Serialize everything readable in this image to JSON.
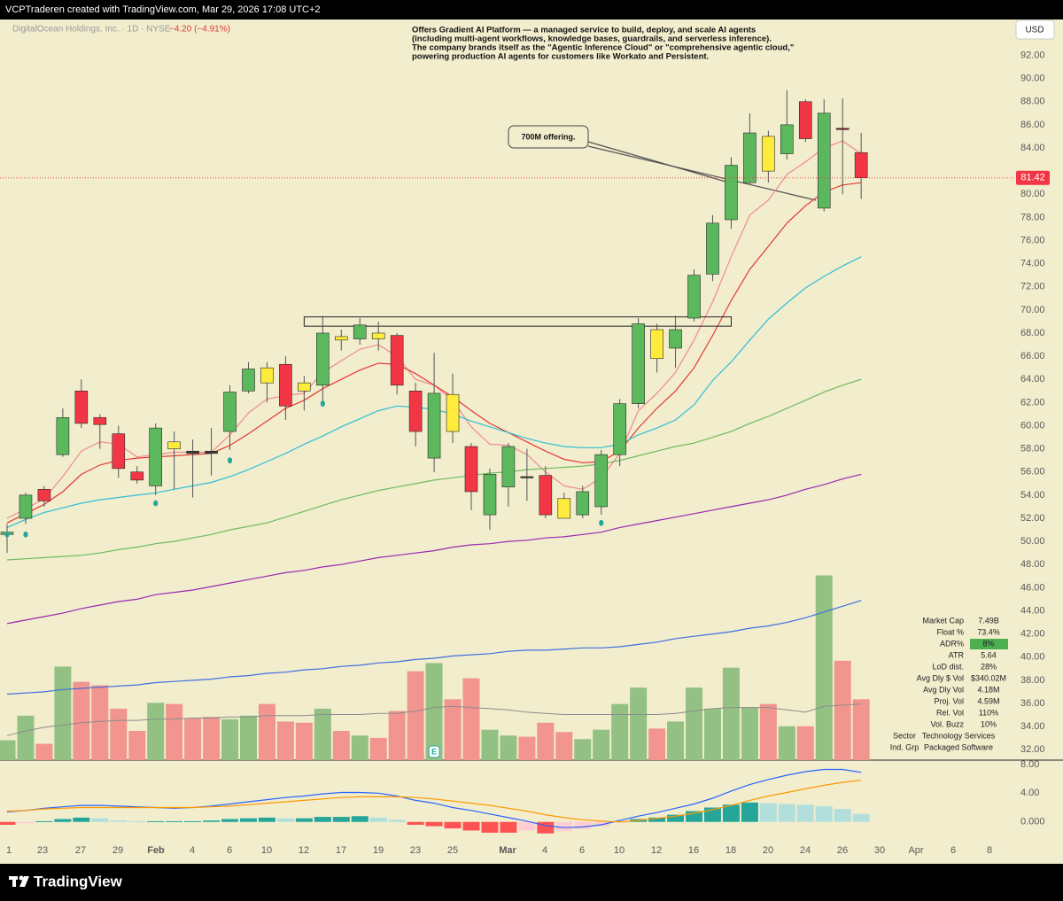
{
  "header": {
    "credit": "VCPTraderen created with TradingView.com, Mar 29, 2026 17:08 UTC+2",
    "brand": "TradingView"
  },
  "chart_data": {
    "type": "candlestick",
    "title": "DigitalOcean Holdings, Inc. · 1D · NYSE",
    "change": "−4.20 (−4.91%)",
    "currency": "USD",
    "description": [
      "Offers Gradient AI Platform — a managed service to build, deploy, and scale AI agents",
      "(including multi-agent workflows, knowledge bases, guardrails, and serverless inference).",
      "The company brands itself as the \"Agentic Inference Cloud\" or \"comprehensive agentic cloud,\"",
      "powering production AI agents for customers like Workato and Persistent."
    ],
    "annotation": "700M offering.",
    "earnings_label": "E",
    "xtick_labels": [
      "1",
      "23",
      "27",
      "29",
      "Feb",
      "4",
      "6",
      "10",
      "12",
      "17",
      "19",
      "23",
      "25",
      "Mar",
      "4",
      "6",
      "10",
      "12",
      "16",
      "18",
      "20",
      "24",
      "26",
      "30",
      "Apr",
      "6",
      "8"
    ],
    "open": [
      50.6,
      52.0,
      54.5,
      57.5,
      63.0,
      60.7,
      59.3,
      56.0,
      54.8,
      58.6,
      57.8,
      57.8,
      59.5,
      63.0,
      65.0,
      65.3,
      63.7,
      63.5,
      67.7,
      67.5,
      68.0,
      67.8,
      63.0,
      57.2,
      62.7,
      58.2,
      52.3,
      54.7,
      55.6,
      55.7,
      53.7,
      52.3,
      53.0,
      57.5,
      61.9,
      68.3,
      66.7,
      69.3,
      73.1,
      77.8,
      81.0,
      85.0,
      83.5,
      88.0,
      78.8,
      85.7,
      83.6
    ],
    "high": [
      51.5,
      54.2,
      54.8,
      61.5,
      64.0,
      61.0,
      60.0,
      56.5,
      60.2,
      59.5,
      58.8,
      59.8,
      63.5,
      65.5,
      65.5,
      66.0,
      64.3,
      69.5,
      68.3,
      69.3,
      69.0,
      68.0,
      63.7,
      66.3,
      64.5,
      58.5,
      56.3,
      58.5,
      58.0,
      56.5,
      54.2,
      54.8,
      57.9,
      62.3,
      69.3,
      68.8,
      69.5,
      73.5,
      78.2,
      83.2,
      87.0,
      85.5,
      89.0,
      88.2,
      88.2,
      88.3,
      85.3
    ],
    "low": [
      49.0,
      51.5,
      53.0,
      57.3,
      59.8,
      58.0,
      55.5,
      55.0,
      54.0,
      54.5,
      53.8,
      55.7,
      57.9,
      62.8,
      62.0,
      60.5,
      61.3,
      62.0,
      66.5,
      67.0,
      66.5,
      62.7,
      58.2,
      56.0,
      58.5,
      52.7,
      51.0,
      53.0,
      53.5,
      52.0,
      52.0,
      52.0,
      52.3,
      56.5,
      61.5,
      64.6,
      65.0,
      69.0,
      72.5,
      77.0,
      80.8,
      81.0,
      83.0,
      84.5,
      78.5,
      80.0,
      79.6
    ],
    "close": [
      50.8,
      54.0,
      53.5,
      60.7,
      60.2,
      60.1,
      56.3,
      55.3,
      59.8,
      58.0,
      57.6,
      57.6,
      62.9,
      64.9,
      63.7,
      61.7,
      63.0,
      68.0,
      67.4,
      68.7,
      67.5,
      63.5,
      59.5,
      62.8,
      59.5,
      54.3,
      55.8,
      58.2,
      55.5,
      52.3,
      52.0,
      54.3,
      57.5,
      61.9,
      68.8,
      65.8,
      68.3,
      73.0,
      77.5,
      82.5,
      85.3,
      82.0,
      86.0,
      84.8,
      87.0,
      85.62,
      81.42
    ],
    "candle_colors": [
      "#5cb85c",
      "#5cb85c",
      "#f23645",
      "#5cb85c",
      "#f23645",
      "#f23645",
      "#f23645",
      "#f23645",
      "#5cb85c",
      "#ffeb3b",
      "#3a3a3a",
      "#3a3a3a",
      "#5cb85c",
      "#5cb85c",
      "#ffeb3b",
      "#f23645",
      "#ffeb3b",
      "#5cb85c",
      "#ffeb3b",
      "#5cb85c",
      "#ffeb3b",
      "#f23645",
      "#f23645",
      "#5cb85c",
      "#ffeb3b",
      "#f23645",
      "#5cb85c",
      "#5cb85c",
      "#3a3a3a",
      "#f23645",
      "#ffeb3b",
      "#5cb85c",
      "#5cb85c",
      "#5cb85c",
      "#5cb85c",
      "#ffeb3b",
      "#5cb85c",
      "#5cb85c",
      "#5cb85c",
      "#5cb85c",
      "#5cb85c",
      "#ffeb3b",
      "#5cb85c",
      "#f23645",
      "#5cb85c",
      "#8b1e1e",
      "#f23645"
    ],
    "ylim": [
      31.1,
      95.1
    ],
    "yticks": [
      {
        "value": 32,
        "label": "32.00"
      },
      {
        "value": 34,
        "label": "34.00"
      },
      {
        "value": 36,
        "label": "36.00"
      },
      {
        "value": 38,
        "label": "38.00"
      },
      {
        "value": 40,
        "label": "40.00"
      },
      {
        "value": 42,
        "label": "42.00"
      },
      {
        "value": 44,
        "label": "44.00"
      },
      {
        "value": 46,
        "label": "46.00"
      },
      {
        "value": 48,
        "label": "48.00"
      },
      {
        "value": 50,
        "label": "50.00"
      },
      {
        "value": 52,
        "label": "52.00"
      },
      {
        "value": 54,
        "label": "54.00"
      },
      {
        "value": 56,
        "label": "56.00"
      },
      {
        "value": 58,
        "label": "58.00"
      },
      {
        "value": 60,
        "label": "60.00"
      },
      {
        "value": 62,
        "label": "62.00"
      },
      {
        "value": 64,
        "label": "64.00"
      },
      {
        "value": 66,
        "label": "66.00"
      },
      {
        "value": 68,
        "label": "68.00"
      },
      {
        "value": 70,
        "label": "70.00"
      },
      {
        "value": 72,
        "label": "72.00"
      },
      {
        "value": 74,
        "label": "74.00"
      },
      {
        "value": 76,
        "label": "76.00"
      },
      {
        "value": 78,
        "label": "78.00"
      },
      {
        "value": 80,
        "label": "80.00"
      },
      {
        "value": 84,
        "label": "84.00"
      },
      {
        "value": 86,
        "label": "86.00"
      },
      {
        "value": 88,
        "label": "88.00"
      },
      {
        "value": 90,
        "label": "90.00"
      },
      {
        "value": 92,
        "label": "92.00"
      }
    ],
    "price_label_color": "#f23645",
    "resistance_zone": [
      68.6,
      69.4
    ],
    "overlays": [
      {
        "color": "#f28a8f",
        "values": [
          52.0,
          52.8,
          53.7,
          55.6,
          57.8,
          58.6,
          58.4,
          57.3,
          57.5,
          57.7,
          57.7,
          57.7,
          59.2,
          61.1,
          62.3,
          62.6,
          62.8,
          64.6,
          65.6,
          66.6,
          67.0,
          66.0,
          64.0,
          63.5,
          62.2,
          59.9,
          58.4,
          58.3,
          57.5,
          56.0,
          54.8,
          54.5,
          55.5,
          57.6,
          61.3,
          62.8,
          64.6,
          67.4,
          70.7,
          74.6,
          78.2,
          79.5,
          81.7,
          82.8,
          84.0,
          84.6,
          83.5
        ]
      },
      {
        "color": "#e53935",
        "values": [
          51.6,
          52.4,
          53.2,
          54.3,
          55.8,
          56.6,
          57.0,
          57.2,
          57.3,
          57.4,
          57.5,
          57.6,
          58.3,
          59.3,
          60.4,
          61.5,
          62.2,
          63.2,
          64.0,
          64.8,
          65.4,
          65.3,
          64.5,
          63.5,
          62.5,
          61.3,
          60.2,
          59.4,
          58.6,
          57.8,
          57.1,
          56.8,
          56.9,
          57.8,
          59.8,
          61.5,
          63.0,
          65.0,
          67.8,
          70.8,
          73.5,
          75.5,
          77.5,
          79.0,
          80.2,
          80.8,
          81.0
        ]
      },
      {
        "color": "#2fbfd6",
        "values": [
          51.2,
          51.9,
          52.5,
          52.9,
          53.3,
          53.6,
          53.8,
          54.0,
          54.2,
          54.5,
          54.8,
          55.1,
          55.6,
          56.2,
          56.9,
          57.6,
          58.4,
          59.1,
          59.9,
          60.6,
          61.3,
          61.7,
          61.6,
          61.4,
          61.0,
          60.4,
          59.9,
          59.4,
          58.9,
          58.5,
          58.2,
          58.1,
          58.1,
          58.4,
          59.2,
          59.8,
          60.5,
          61.8,
          63.9,
          65.5,
          67.4,
          69.2,
          70.6,
          71.9,
          72.9,
          73.8,
          74.6
        ]
      },
      {
        "color": "#6dbb5e",
        "values": [
          48.4,
          48.5,
          48.6,
          48.7,
          48.8,
          49.0,
          49.3,
          49.5,
          49.8,
          50.0,
          50.3,
          50.6,
          51.0,
          51.3,
          51.6,
          52.1,
          52.6,
          53.1,
          53.6,
          54.0,
          54.4,
          54.7,
          55.0,
          55.3,
          55.5,
          55.7,
          55.9,
          56.0,
          56.2,
          56.3,
          56.4,
          56.5,
          56.7,
          57.0,
          57.4,
          57.8,
          58.2,
          58.5,
          59.0,
          59.5,
          60.2,
          60.8,
          61.5,
          62.2,
          62.9,
          63.5,
          64.0
        ]
      },
      {
        "color": "#9c27b0",
        "values": [
          42.9,
          43.2,
          43.5,
          43.8,
          44.2,
          44.5,
          44.8,
          45.0,
          45.4,
          45.6,
          45.8,
          46.1,
          46.4,
          46.7,
          47.0,
          47.3,
          47.5,
          47.8,
          48.0,
          48.3,
          48.6,
          48.8,
          49.0,
          49.2,
          49.5,
          49.7,
          49.8,
          50.0,
          50.1,
          50.3,
          50.4,
          50.6,
          50.8,
          51.2,
          51.5,
          51.8,
          52.1,
          52.4,
          52.7,
          53.0,
          53.3,
          53.6,
          54.0,
          54.5,
          54.9,
          55.4,
          55.8
        ]
      },
      {
        "color": "#3f6fe0",
        "values": [
          36.8,
          36.9,
          37.0,
          37.2,
          37.3,
          37.4,
          37.5,
          37.6,
          37.8,
          37.9,
          38.0,
          38.1,
          38.3,
          38.4,
          38.6,
          38.7,
          38.9,
          39.0,
          39.2,
          39.3,
          39.5,
          39.6,
          39.8,
          39.9,
          40.1,
          40.2,
          40.3,
          40.5,
          40.6,
          40.6,
          40.7,
          40.8,
          40.8,
          40.9,
          41.1,
          41.3,
          41.6,
          41.8,
          42.0,
          42.2,
          42.5,
          42.7,
          43.0,
          43.4,
          43.9,
          44.4,
          44.9
        ]
      }
    ],
    "markers": {
      "color": "#26a69a",
      "values": [
        50.6,
        50.6,
        null,
        null,
        null,
        null,
        null,
        null,
        53.3,
        null,
        null,
        null,
        57.0,
        null,
        null,
        null,
        null,
        61.9,
        null,
        null,
        null,
        null,
        null,
        null,
        null,
        null,
        null,
        null,
        null,
        null,
        null,
        null,
        51.6,
        null,
        null,
        null,
        null,
        null,
        null,
        null,
        null,
        null,
        null,
        null,
        null,
        null,
        null
      ]
    },
    "volume": {
      "up_color": "#93c183",
      "down_color": "#f2958e",
      "values": [
        1.7,
        3.8,
        1.4,
        8.0,
        6.7,
        6.4,
        4.4,
        2.5,
        4.9,
        4.8,
        3.6,
        3.7,
        3.5,
        3.8,
        4.8,
        3.3,
        3.2,
        4.4,
        2.5,
        2.1,
        1.9,
        4.2,
        7.6,
        8.3,
        5.2,
        7.0,
        2.6,
        2.1,
        2.0,
        3.2,
        2.4,
        1.8,
        2.6,
        4.8,
        6.2,
        2.7,
        3.3,
        6.2,
        4.4,
        7.9,
        4.5,
        4.8,
        2.9,
        2.9,
        15.8,
        8.5,
        5.2
      ],
      "ma": {
        "color": "#8c8c8c",
        "values": [
          2.1,
          2.5,
          2.8,
          3.0,
          3.2,
          3.3,
          3.4,
          3.4,
          3.5,
          3.5,
          3.6,
          3.6,
          3.7,
          3.7,
          3.8,
          3.8,
          3.8,
          3.9,
          3.9,
          3.9,
          4.0,
          4.0,
          4.2,
          4.5,
          4.6,
          4.5,
          4.4,
          4.3,
          4.1,
          4.0,
          3.9,
          3.9,
          3.9,
          3.9,
          3.9,
          3.9,
          4.0,
          4.2,
          4.4,
          4.5,
          4.5,
          4.5,
          4.3,
          4.1,
          4.6,
          4.7,
          4.8
        ]
      }
    },
    "macd": {
      "ylim": [
        -2.5,
        8.6
      ],
      "yticks": [
        {
          "value": 0,
          "label": "0.000"
        },
        {
          "value": 4,
          "label": "4.00"
        },
        {
          "value": 8,
          "label": "8.00"
        }
      ],
      "histogram": [
        -0.4,
        -0.2,
        0.1,
        0.4,
        0.6,
        0.5,
        0.2,
        0.1,
        0.1,
        0.1,
        0.1,
        0.2,
        0.4,
        0.5,
        0.6,
        0.5,
        0.5,
        0.7,
        0.7,
        0.8,
        0.6,
        0.3,
        -0.4,
        -0.6,
        -0.9,
        -1.2,
        -1.5,
        -1.5,
        -1.2,
        -1.6,
        -1.3,
        -1.0,
        -0.6,
        -0.1,
        0.4,
        0.6,
        1.0,
        1.5,
        2.0,
        2.4,
        2.7,
        2.6,
        2.5,
        2.4,
        2.2,
        1.8,
        1.1
      ],
      "hist_colors": {
        "above_rising": "#26a69a",
        "above_falling": "#b2dfdb",
        "below_falling": "#ff5252",
        "below_rising": "#ffcdd2"
      },
      "lines": [
        {
          "color": "#2962ff",
          "values": [
            1.4,
            1.6,
            1.9,
            2.1,
            2.3,
            2.3,
            2.2,
            2.1,
            2.0,
            1.9,
            2.0,
            2.2,
            2.5,
            2.8,
            3.1,
            3.4,
            3.6,
            3.9,
            4.1,
            4.1,
            4.0,
            3.6,
            3.0,
            2.6,
            2.0,
            1.6,
            1.1,
            0.6,
            0.1,
            -0.5,
            -0.8,
            -0.7,
            -0.4,
            0.2,
            0.8,
            1.3,
            1.9,
            2.5,
            3.3,
            4.3,
            5.2,
            5.9,
            6.5,
            7.0,
            7.3,
            7.3,
            6.9
          ]
        },
        {
          "color": "#ff9800",
          "values": [
            1.5,
            1.6,
            1.8,
            1.9,
            2.0,
            2.0,
            2.0,
            2.0,
            2.0,
            2.0,
            2.0,
            2.1,
            2.2,
            2.4,
            2.6,
            2.8,
            3.0,
            3.2,
            3.4,
            3.5,
            3.5,
            3.5,
            3.4,
            3.2,
            2.9,
            2.6,
            2.3,
            1.9,
            1.5,
            1.0,
            0.6,
            0.3,
            0.1,
            0.0,
            0.2,
            0.5,
            0.8,
            1.2,
            1.7,
            2.3,
            3.0,
            3.6,
            4.1,
            4.6,
            5.1,
            5.5,
            5.8
          ]
        }
      ]
    }
  },
  "stats": {
    "rows": [
      {
        "label": "Market Cap",
        "value": "7.49B"
      },
      {
        "label": "Float %",
        "value": "73.4%"
      },
      {
        "label": "ADR%",
        "value": "8%",
        "color": "#4caf50"
      },
      {
        "label": "ATR",
        "value": "5.64"
      },
      {
        "label": "LoD dist.",
        "value": "28%"
      },
      {
        "label": "Avg Dly $ Vol",
        "value": "$340.02M"
      },
      {
        "label": "Avg Dly Vol",
        "value": "4.18M"
      },
      {
        "label": "Proj. Vol",
        "value": "4.59M"
      },
      {
        "label": "Rel. Vol",
        "value": "110%"
      },
      {
        "label": "Vol. Buzz",
        "value": "10%"
      },
      {
        "label": "Sector",
        "value": "Technology Services"
      },
      {
        "label": "Ind. Grp",
        "value": "Packaged Software"
      }
    ]
  }
}
